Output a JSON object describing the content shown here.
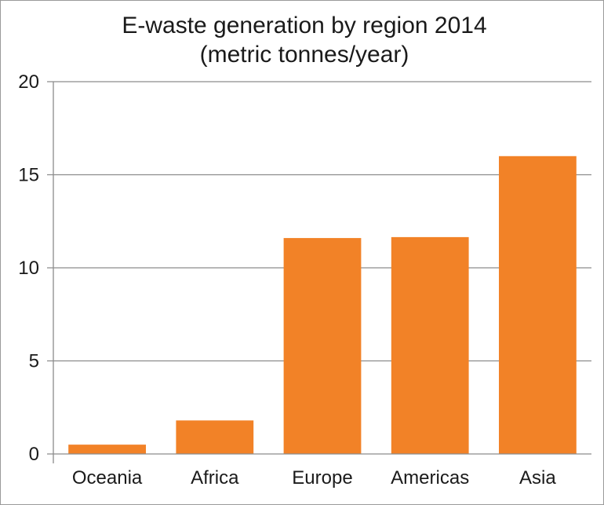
{
  "chart_data": {
    "type": "bar",
    "title_lines": [
      "E-waste generation by region 2014",
      "(metric tonnes/year)"
    ],
    "categories": [
      "Oceania",
      "Africa",
      "Europe",
      "Americas",
      "Asia"
    ],
    "values": [
      0.5,
      1.8,
      11.6,
      11.65,
      16.0
    ],
    "ylim": [
      0,
      20
    ],
    "yticks": [
      0,
      5,
      10,
      15,
      20
    ],
    "ytick_labels": [
      "0",
      "5",
      "10",
      "15",
      "20"
    ],
    "xlabel": "",
    "ylabel": "",
    "grid": true,
    "bar_color": "#f28227",
    "grid_color": "#8c8c8c",
    "text_color": "#1a1a1a"
  }
}
